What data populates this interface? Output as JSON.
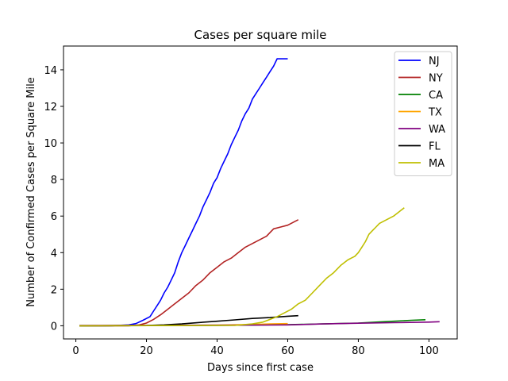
{
  "chart_data": {
    "type": "line",
    "title": "Cases per square mile",
    "xlabel": "Days since first case",
    "ylabel": "Number of Confirmed Cases per Square Mile",
    "xlim": [
      -3.5,
      108
    ],
    "ylim": [
      -0.72,
      15.3
    ],
    "xticks": [
      0,
      20,
      40,
      60,
      80,
      100
    ],
    "yticks": [
      0,
      2,
      4,
      6,
      8,
      10,
      12,
      14
    ],
    "grid": false,
    "legend_position": "top-right",
    "series": [
      {
        "name": "NJ",
        "color": "#0000ff",
        "x": [
          1,
          10,
          15,
          17,
          19,
          21,
          22,
          23,
          24,
          25,
          26,
          27,
          28,
          29,
          30,
          31,
          32,
          33,
          34,
          35,
          36,
          37,
          38,
          39,
          40,
          41,
          42,
          43,
          44,
          45,
          46,
          47,
          48,
          49,
          50,
          51,
          52,
          53,
          54,
          55,
          56,
          57,
          58,
          59,
          60
        ],
        "y": [
          0,
          0,
          0.05,
          0.12,
          0.3,
          0.5,
          0.8,
          1.1,
          1.4,
          1.8,
          2.1,
          2.5,
          2.9,
          3.5,
          4.0,
          4.4,
          4.8,
          5.2,
          5.6,
          6.0,
          6.5,
          6.9,
          7.3,
          7.8,
          8.1,
          8.6,
          9.0,
          9.4,
          9.9,
          10.3,
          10.7,
          11.2,
          11.6,
          11.9,
          12.4,
          12.7,
          13.0,
          13.3,
          13.6,
          13.9,
          14.2,
          14.6,
          14.6,
          14.6,
          14.6
        ]
      },
      {
        "name": "NY",
        "color": "#b22222",
        "x": [
          1,
          15,
          18,
          20,
          22,
          24,
          26,
          28,
          30,
          32,
          34,
          36,
          38,
          40,
          42,
          44,
          46,
          48,
          50,
          52,
          54,
          55,
          56,
          58,
          60,
          62,
          63
        ],
        "y": [
          0,
          0,
          0.05,
          0.15,
          0.35,
          0.6,
          0.9,
          1.2,
          1.5,
          1.8,
          2.2,
          2.5,
          2.9,
          3.2,
          3.5,
          3.7,
          4.0,
          4.3,
          4.5,
          4.7,
          4.9,
          5.1,
          5.3,
          5.4,
          5.5,
          5.7,
          5.8
        ]
      },
      {
        "name": "CA",
        "color": "#008000",
        "x": [
          1,
          40,
          50,
          60,
          70,
          80,
          85,
          90,
          95,
          99
        ],
        "y": [
          0,
          0.02,
          0.04,
          0.06,
          0.1,
          0.15,
          0.2,
          0.25,
          0.3,
          0.33
        ]
      },
      {
        "name": "TX",
        "color": "#ffa500",
        "x": [
          1,
          30,
          40,
          50,
          55,
          60
        ],
        "y": [
          0,
          0.02,
          0.04,
          0.07,
          0.1,
          0.12
        ]
      },
      {
        "name": "WA",
        "color": "#800080",
        "x": [
          1,
          40,
          55,
          60,
          70,
          80,
          90,
          100,
          103
        ],
        "y": [
          0.02,
          0.03,
          0.04,
          0.05,
          0.1,
          0.14,
          0.17,
          0.2,
          0.22
        ]
      },
      {
        "name": "FL",
        "color": "#000000",
        "x": [
          1,
          20,
          25,
          30,
          35,
          40,
          45,
          50,
          55,
          60,
          63
        ],
        "y": [
          0,
          0.02,
          0.05,
          0.1,
          0.18,
          0.25,
          0.32,
          0.4,
          0.45,
          0.52,
          0.55
        ]
      },
      {
        "name": "MA",
        "color": "#bfbf00",
        "x": [
          1,
          45,
          50,
          53,
          55,
          57,
          59,
          61,
          63,
          65,
          67,
          69,
          71,
          73,
          75,
          77,
          78,
          79,
          80,
          81,
          82,
          83,
          84,
          85,
          86,
          88,
          90,
          92,
          93
        ],
        "y": [
          0,
          0.02,
          0.1,
          0.2,
          0.35,
          0.5,
          0.7,
          0.9,
          1.2,
          1.4,
          1.8,
          2.2,
          2.6,
          2.9,
          3.3,
          3.6,
          3.7,
          3.8,
          4.0,
          4.3,
          4.6,
          5.0,
          5.2,
          5.4,
          5.6,
          5.8,
          6.0,
          6.3,
          6.45
        ]
      }
    ]
  }
}
